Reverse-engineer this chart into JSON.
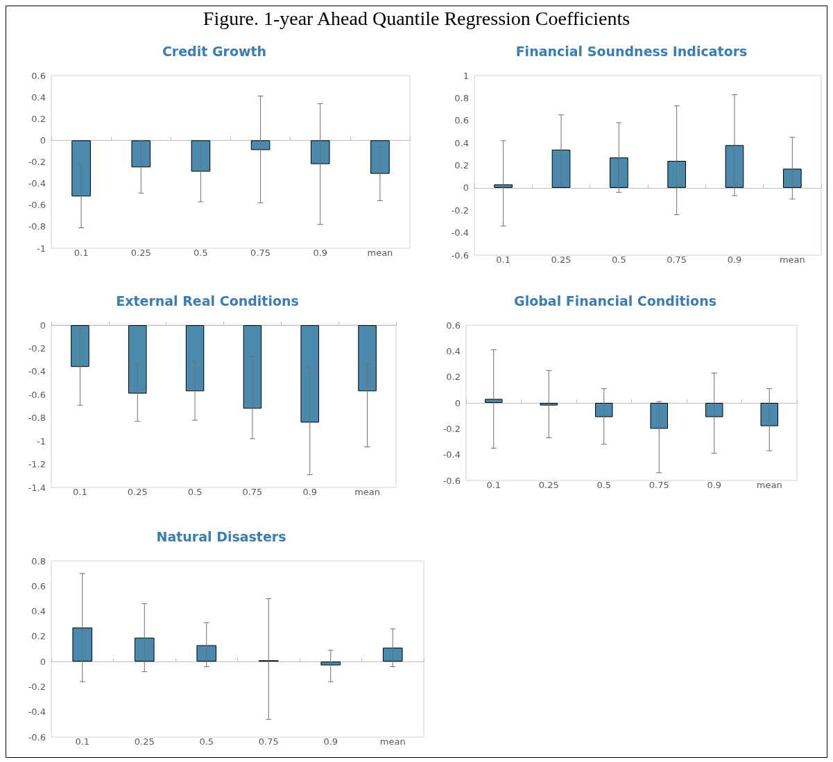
{
  "chart_data": [
    {
      "type": "bar",
      "title": "Credit Growth",
      "annotations": [
        "Figure. 1-year Ahead Quantile Regression Coefficients"
      ],
      "categories": [
        "0.1",
        "0.25",
        "0.5",
        "0.75",
        "0.9",
        "mean"
      ],
      "color": "#4a8bad",
      "values": [
        -0.52,
        -0.25,
        -0.29,
        -0.09,
        -0.22,
        -0.31
      ],
      "errors": [
        [
          -0.81,
          -0.23
        ],
        [
          -0.49,
          0.0
        ],
        [
          -0.57,
          -0.01
        ],
        [
          -0.58,
          0.41
        ],
        [
          -0.78,
          0.34
        ],
        [
          -0.56,
          -0.06
        ]
      ],
      "ylim": [
        -1,
        0.6
      ],
      "yticks": [
        -1,
        -0.8,
        -0.6,
        -0.4,
        -0.2,
        0,
        0.2,
        0.4,
        0.6
      ]
    },
    {
      "type": "bar",
      "title": "Financial Soundness Indicators",
      "categories": [
        "0.1",
        "0.25",
        "0.5",
        "0.75",
        "0.9",
        "mean"
      ],
      "color": "#4a8bad",
      "values": [
        0.03,
        0.34,
        0.27,
        0.24,
        0.38,
        0.17
      ],
      "errors": [
        [
          -0.34,
          0.42
        ],
        [
          0.03,
          0.65
        ],
        [
          -0.04,
          0.58
        ],
        [
          -0.24,
          0.73
        ],
        [
          -0.07,
          0.83
        ],
        [
          -0.1,
          0.45
        ]
      ],
      "ylim": [
        -0.6,
        1
      ],
      "yticks": [
        -0.6,
        -0.4,
        -0.2,
        0,
        0.2,
        0.4,
        0.6,
        0.8,
        1
      ]
    },
    {
      "type": "bar",
      "title": "External Real Conditions",
      "categories": [
        "0.1",
        "0.25",
        "0.5",
        "0.75",
        "0.9",
        "mean"
      ],
      "color": "#4a8bad",
      "values": [
        -0.36,
        -0.59,
        -0.57,
        -0.72,
        -0.84,
        -0.57
      ],
      "errors": [
        [
          -0.69,
          -0.03
        ],
        [
          -0.83,
          -0.33
        ],
        [
          -0.82,
          -0.31
        ],
        [
          -0.98,
          -0.27
        ],
        [
          -1.29,
          -0.36
        ],
        [
          -1.05,
          -0.34
        ]
      ],
      "ylim": [
        -1.4,
        0
      ],
      "yticks": [
        -1.4,
        -1.2,
        -1,
        -0.8,
        -0.6,
        -0.4,
        -0.2,
        0
      ]
    },
    {
      "type": "bar",
      "title": "Global Financial Conditions",
      "categories": [
        "0.1",
        "0.25",
        "0.5",
        "0.75",
        "0.9",
        "mean"
      ],
      "color": "#4a8bad",
      "values": [
        0.03,
        -0.02,
        -0.11,
        -0.2,
        -0.11,
        -0.18
      ],
      "errors": [
        [
          -0.35,
          0.41
        ],
        [
          -0.27,
          0.25
        ],
        [
          -0.32,
          0.11
        ],
        [
          -0.54,
          0.01
        ],
        [
          -0.39,
          0.23
        ],
        [
          -0.37,
          0.11
        ]
      ],
      "ylim": [
        -0.6,
        0.6
      ],
      "yticks": [
        -0.6,
        -0.4,
        -0.2,
        0,
        0.2,
        0.4,
        0.6
      ]
    },
    {
      "type": "bar",
      "title": "Natural Disasters",
      "categories": [
        "0.1",
        "0.25",
        "0.5",
        "0.75",
        "0.9",
        "mean"
      ],
      "color": "#4a8bad",
      "values": [
        0.27,
        0.19,
        0.13,
        0.01,
        -0.03,
        0.11
      ],
      "errors": [
        [
          -0.16,
          0.7
        ],
        [
          -0.08,
          0.46
        ],
        [
          -0.04,
          0.31
        ],
        [
          -0.46,
          0.5
        ],
        [
          -0.16,
          0.09
        ],
        [
          -0.04,
          0.26
        ]
      ],
      "ylim": [
        -0.6,
        0.8
      ],
      "yticks": [
        -0.6,
        -0.4,
        -0.2,
        0,
        0.2,
        0.4,
        0.6,
        0.8
      ]
    }
  ]
}
